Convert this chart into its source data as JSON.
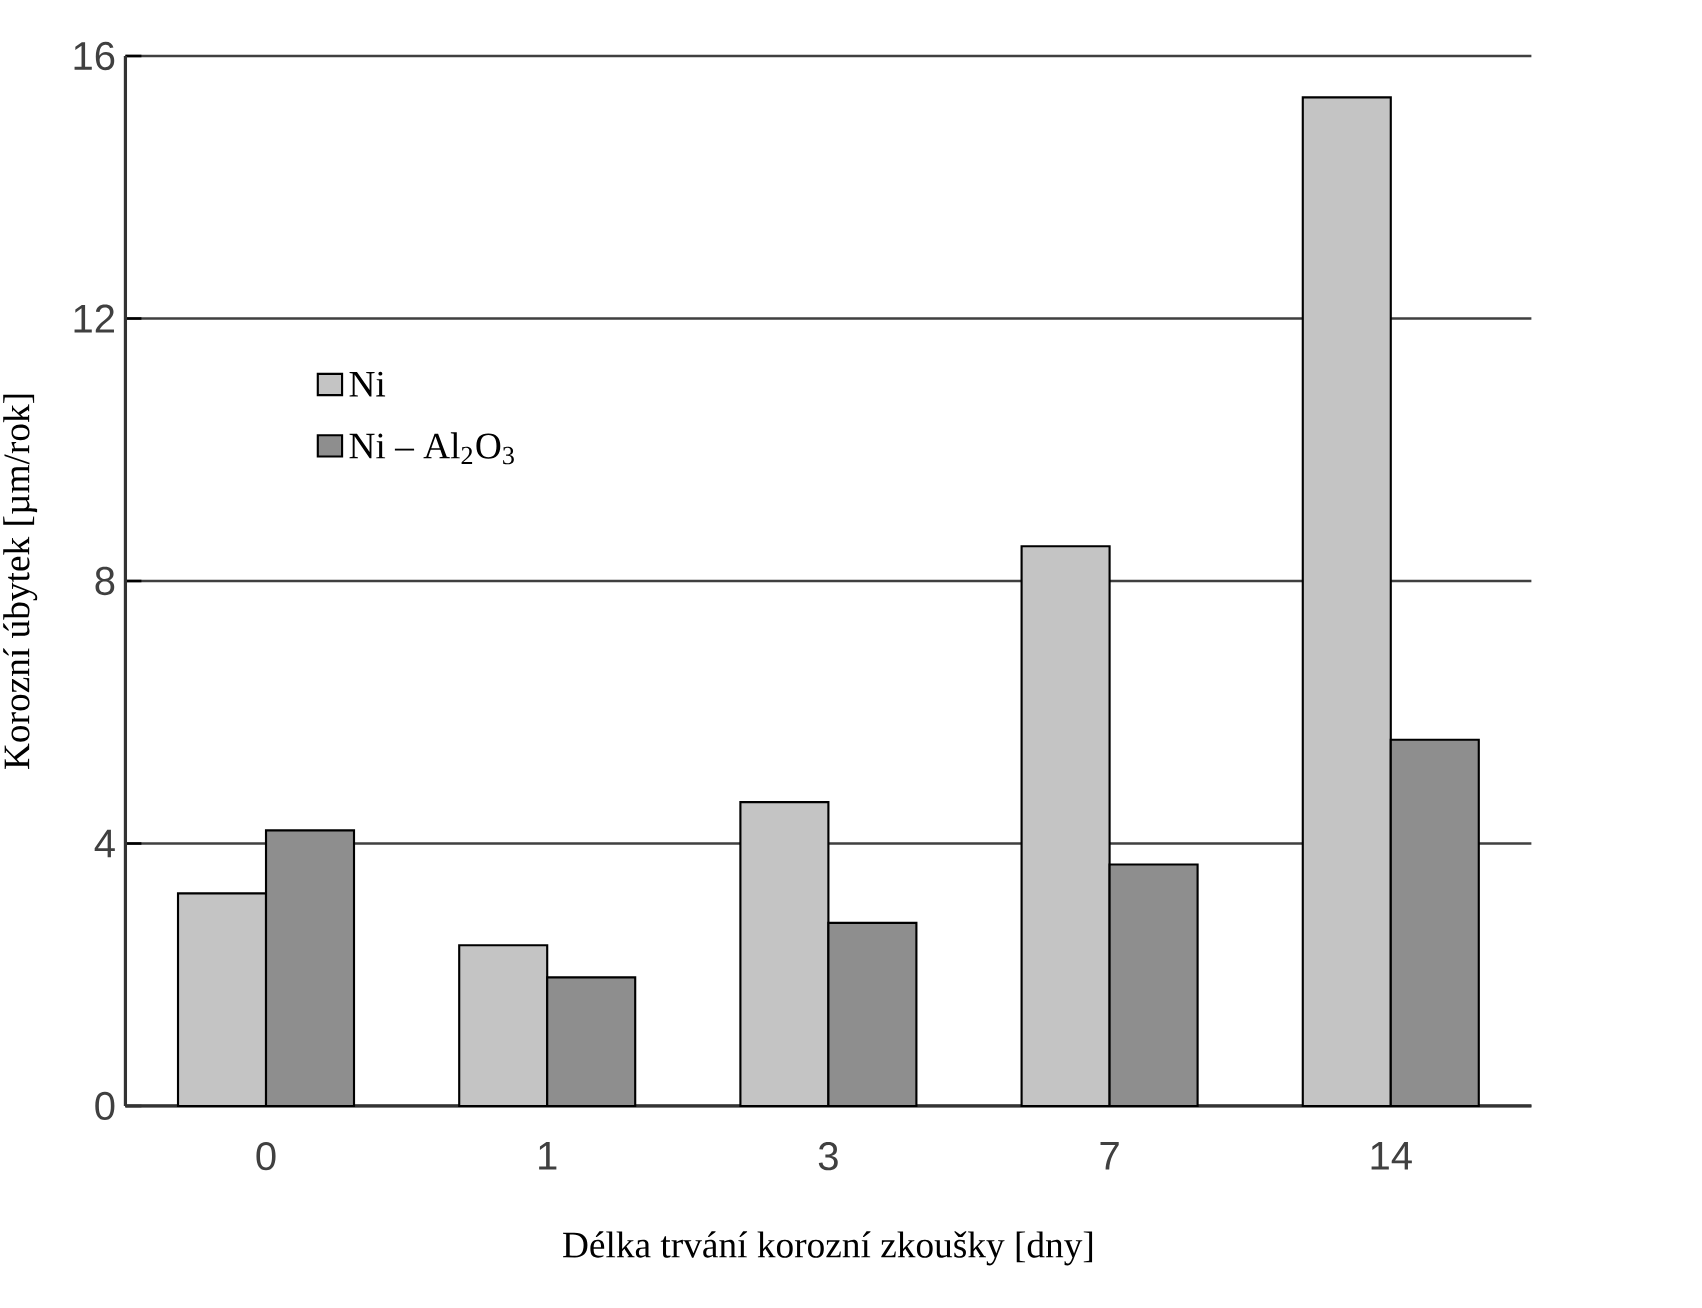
{
  "chart_data": {
    "type": "bar",
    "xlabel": "Délka trvání korozní zkoušky [dny]",
    "ylabel": "Korozní úbytek [µm/rok]",
    "categories": [
      "0",
      "1",
      "3",
      "7",
      "14"
    ],
    "series": [
      {
        "name": "Ni",
        "color": "#c4c4c4",
        "values": [
          3.24,
          2.45,
          4.63,
          8.53,
          15.37
        ]
      },
      {
        "name": "Ni – Al$_{2}$O$_{3}$",
        "color": "#8e8e8e",
        "values": [
          4.2,
          1.96,
          2.79,
          3.68,
          5.58
        ]
      }
    ],
    "ylim": [
      0,
      16
    ],
    "yticks": [
      0,
      4,
      8,
      12,
      16
    ],
    "grid": "y",
    "legend": "top left"
  }
}
